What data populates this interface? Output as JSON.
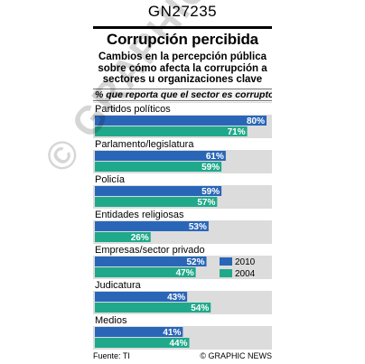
{
  "code": "GN27235",
  "title": "Corrupción percibida",
  "subtitle_lines": [
    "Cambios en la percepción pública",
    "sobre cómo afecta la corrupción a",
    "sectores u organizaciones clave"
  ],
  "note": "% que reporta que el sector es corrupto",
  "footer": {
    "source": "Fuente: TI",
    "credit": "© GRAPHIC NEWS"
  },
  "watermark": "© GRAPHIC NEWS",
  "colors": {
    "series_2010": "#2a66b8",
    "series_2004": "#1fa98a",
    "panel_bg": "#dcdcdc"
  },
  "chart_data": {
    "type": "bar",
    "orientation": "horizontal",
    "categories": [
      "Partidos políticos",
      "Parlamento/legislatura",
      "Policía",
      "Entidades religiosas",
      "Empresas/sector privado",
      "Judicatura",
      "Medios"
    ],
    "series": [
      {
        "name": "2010",
        "values": [
          80,
          61,
          59,
          53,
          52,
          43,
          41
        ]
      },
      {
        "name": "2004",
        "values": [
          71,
          59,
          57,
          26,
          47,
          54,
          44
        ]
      }
    ],
    "value_suffix": "%",
    "xlim": [
      0,
      80
    ],
    "legend": {
      "position": "right-middle",
      "labels": [
        "2010",
        "2004"
      ]
    }
  }
}
